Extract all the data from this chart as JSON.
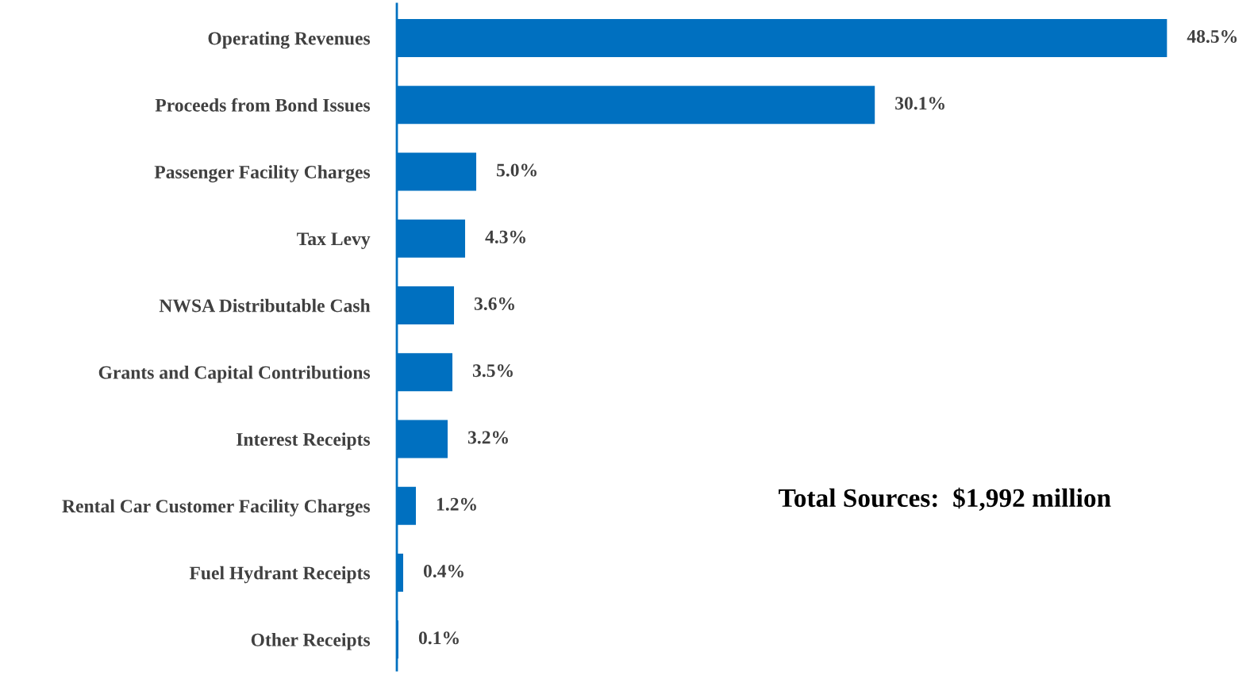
{
  "chart_data": {
    "type": "bar",
    "orientation": "horizontal",
    "categories": [
      "Operating Revenues",
      "Proceeds from Bond Issues",
      "Passenger Facility Charges",
      "Tax Levy",
      "NWSA Distributable Cash",
      "Grants and Capital Contributions",
      "Interest Receipts",
      "Rental Car Customer Facility Charges",
      "Fuel Hydrant Receipts",
      "Other Receipts"
    ],
    "values": [
      48.5,
      30.1,
      5.0,
      4.3,
      3.6,
      3.5,
      3.2,
      1.2,
      0.4,
      0.1
    ],
    "value_labels": [
      "48.5%",
      "30.1%",
      "5.0%",
      "4.3%",
      "3.6%",
      "3.5%",
      "3.2%",
      "1.2%",
      "0.4%",
      "0.1%"
    ],
    "color": "#0070c0",
    "grid": false,
    "legend": false,
    "annotations": [
      "Total Sources:  $1,992 million"
    ]
  }
}
